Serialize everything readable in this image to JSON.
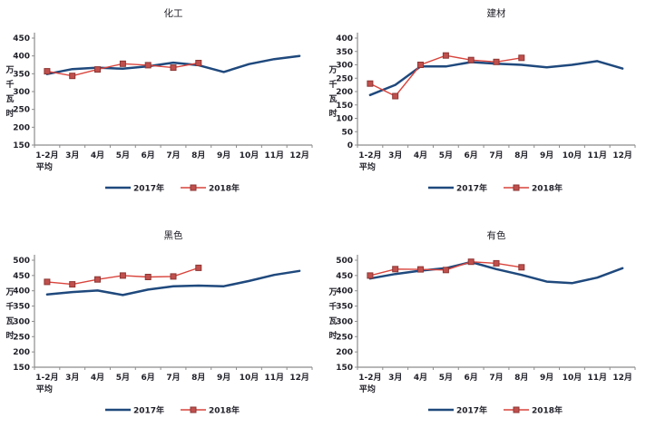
{
  "app": {
    "background": "#ffffff"
  },
  "colors": {
    "series_2017_line": "#1F497D",
    "series_2018_line": "#D9443C",
    "series_2018_marker_fill": "#C0504D",
    "series_2018_marker_border": "#8E3634",
    "axis_line": "#8C8C8C",
    "tick_text": "#1F1F28",
    "title_text": "#1F1F28"
  },
  "legend": {
    "position": "bottom-center",
    "items": [
      {
        "label": "2017年",
        "swatch": "line"
      },
      {
        "label": "2018年",
        "swatch": "line-with-square-marker"
      }
    ]
  },
  "chart_data": [
    {
      "type": "line",
      "title": "化工",
      "ylabel": "万千瓦时",
      "ylim": [
        150,
        450
      ],
      "ytick_step": 50,
      "grid": false,
      "legend_position": "bottom",
      "categories": [
        "1-2月",
        "3月",
        "4月",
        "5月",
        "6月",
        "7月",
        "8月",
        "9月",
        "10月",
        "11月",
        "12月"
      ],
      "first_category_line2": "平均",
      "series": [
        {
          "name": "2017年",
          "values": [
            349,
            363,
            367,
            364,
            371,
            381,
            374,
            355,
            377,
            391,
            400
          ]
        },
        {
          "name": "2018年",
          "values": [
            357,
            344,
            362,
            378,
            374,
            367,
            380
          ]
        }
      ]
    },
    {
      "type": "line",
      "title": "建材",
      "ylabel": "万千瓦时",
      "ylim": [
        0,
        400
      ],
      "ytick_step": 50,
      "grid": false,
      "legend_position": "bottom",
      "categories": [
        "1-2月",
        "3月",
        "4月",
        "5月",
        "6月",
        "7月",
        "8月",
        "9月",
        "10月",
        "11月",
        "12月"
      ],
      "first_category_line2": "平均",
      "series": [
        {
          "name": "2017年",
          "values": [
            187,
            225,
            294,
            294,
            310,
            304,
            300,
            291,
            300,
            314,
            286
          ]
        },
        {
          "name": "2018年",
          "values": [
            230,
            183,
            300,
            335,
            318,
            311,
            326
          ]
        }
      ]
    },
    {
      "type": "line",
      "title": "黑色",
      "ylabel": "万千瓦时",
      "ylim": [
        150,
        500
      ],
      "ytick_step": 50,
      "grid": false,
      "legend_position": "bottom",
      "categories": [
        "1-2月",
        "3月",
        "4月",
        "5月",
        "6月",
        "7月",
        "8月",
        "9月",
        "10月",
        "11月",
        "12月"
      ],
      "first_category_line2": "平均",
      "series": [
        {
          "name": "2017年",
          "values": [
            388,
            396,
            401,
            386,
            404,
            415,
            417,
            415,
            432,
            452,
            465
          ]
        },
        {
          "name": "2018年",
          "values": [
            429,
            421,
            437,
            450,
            445,
            447,
            475
          ]
        }
      ]
    },
    {
      "type": "line",
      "title": "有色",
      "ylabel": "万千瓦时",
      "ylim": [
        150,
        500
      ],
      "ytick_step": 50,
      "grid": false,
      "legend_position": "bottom",
      "categories": [
        "1-2月",
        "3月",
        "4月",
        "5月",
        "6月",
        "7月",
        "8月",
        "9月",
        "10月",
        "11月",
        "12月"
      ],
      "first_category_line2": "平均",
      "series": [
        {
          "name": "2017年",
          "values": [
            440,
            455,
            466,
            474,
            494,
            471,
            452,
            430,
            425,
            443,
            474
          ]
        },
        {
          "name": "2018年",
          "values": [
            450,
            471,
            470,
            468,
            495,
            490,
            477
          ]
        }
      ]
    }
  ]
}
